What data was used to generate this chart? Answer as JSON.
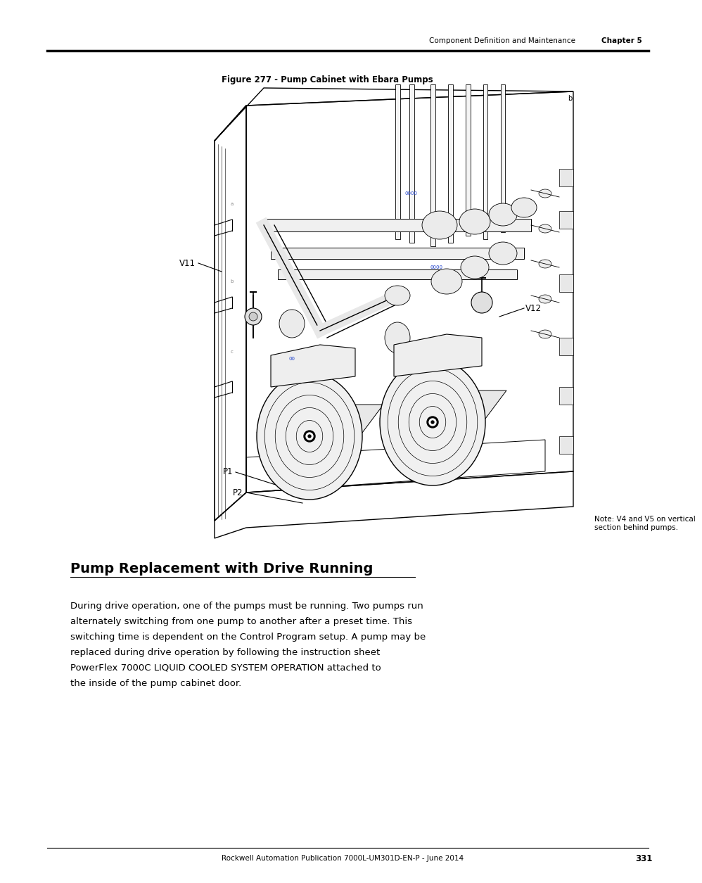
{
  "page_bg": "#ffffff",
  "header_text": "Component Definition and Maintenance",
  "header_chapter": "Chapter 5",
  "figure_caption": "Figure 277 - Pump Cabinet with Ebara Pumps",
  "section_title": "Pump Replacement with Drive Running",
  "body_text_lines": [
    "During drive operation, one of the pumps must be running. Two pumps run",
    "alternately switching from one pump to another after a preset time. This",
    "switching time is dependent on the Control Program setup. A pump may be",
    "replaced during drive operation by following the instruction sheet",
    "PowerFlex 7000C LIQUID COOLED SYSTEM OPERATION attached to",
    "the inside of the pump cabinet door."
  ],
  "footer_text": "Rockwell Automation Publication 7000L-UM301D-EN-P - June 2014",
  "footer_page": "331",
  "note_text": "Note: V4 and V5 on vertical\nsection behind pumps."
}
